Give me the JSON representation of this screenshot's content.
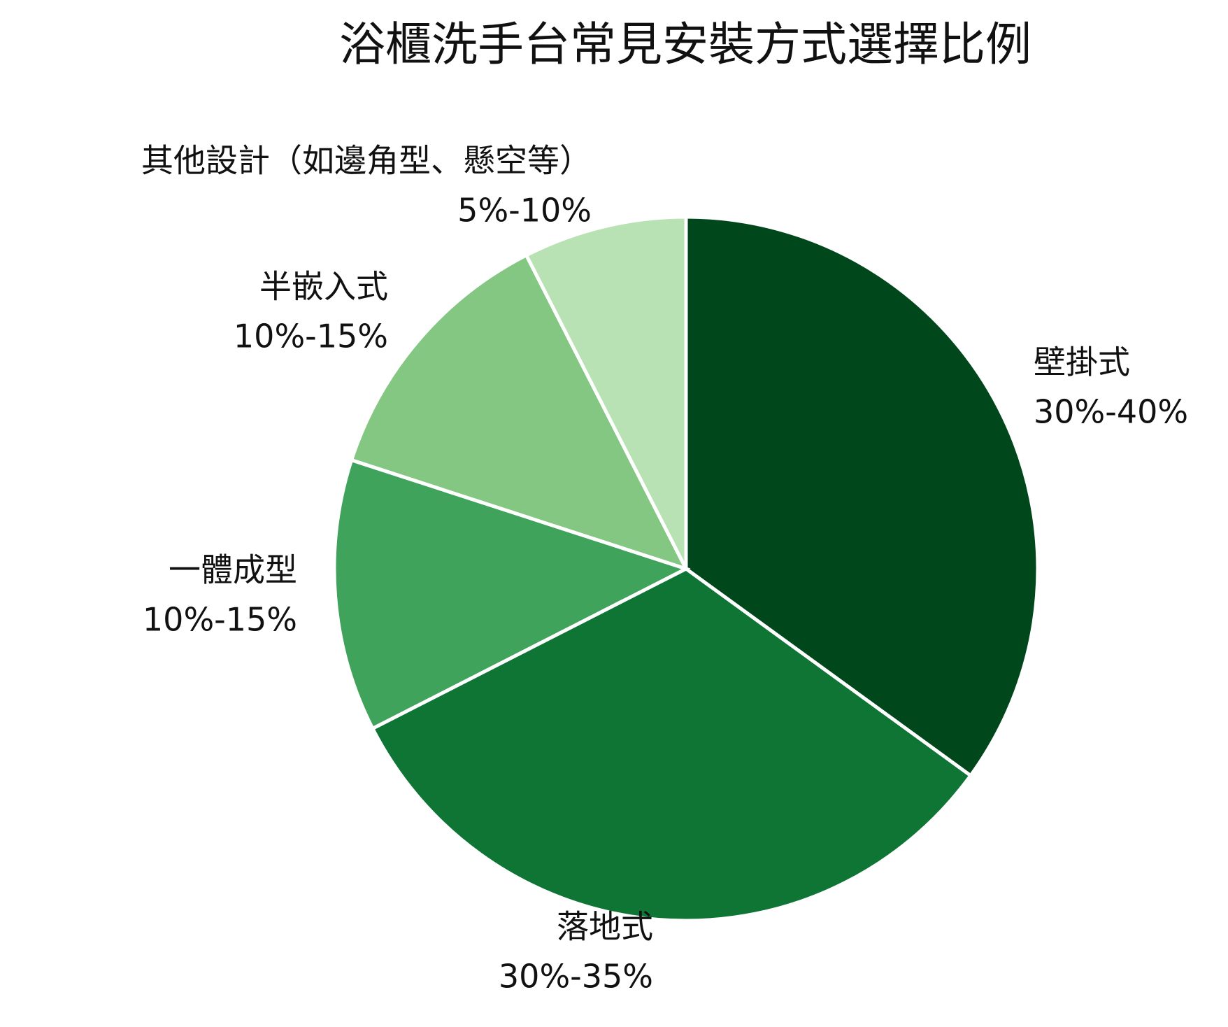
{
  "chart_data": {
    "type": "pie",
    "title": "浴櫃洗手台常見安裝方式選擇比例",
    "categories": [
      "壁掛式",
      "落地式",
      "一體成型",
      "半嵌入式",
      "其他設計（如邊角型、懸空等）"
    ],
    "values": [
      35,
      32.5,
      12.5,
      12.5,
      7.5
    ],
    "value_labels": [
      "30%-40%",
      "30%-35%",
      "10%-15%",
      "10%-15%",
      "5%-10%"
    ],
    "colors": [
      "#00471c",
      "#0e7535",
      "#3fa35b",
      "#83c783",
      "#b8e2b3"
    ]
  }
}
